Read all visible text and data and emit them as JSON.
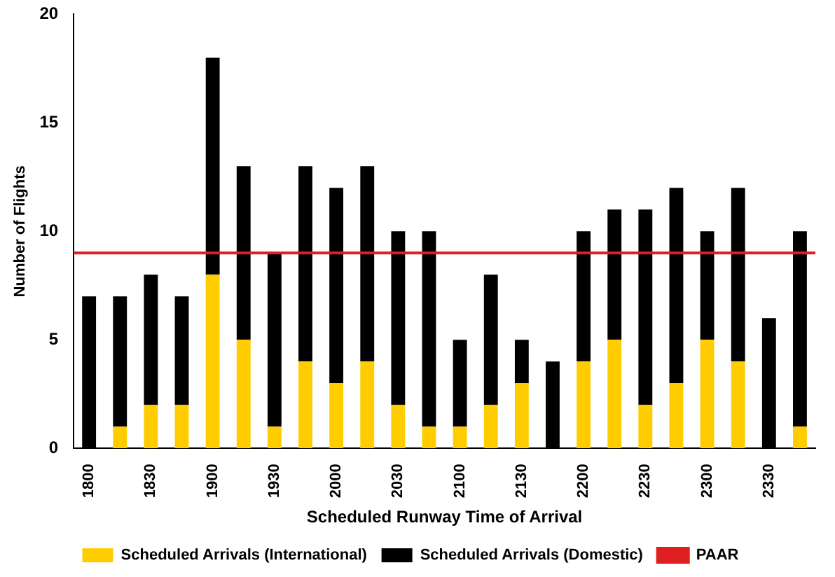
{
  "chart_data": {
    "type": "bar",
    "stacked": true,
    "xlabel": "Scheduled Runway Time of Arrival",
    "ylabel": "Number of Flights",
    "categories": [
      "1800",
      null,
      "1830",
      null,
      "1900",
      null,
      "1930",
      null,
      "2000",
      null,
      "2030",
      null,
      "2100",
      null,
      "2130",
      null,
      "2200",
      null,
      "2230",
      null,
      "2300",
      null,
      "2330",
      null
    ],
    "series": [
      {
        "name": "Scheduled Arrivals (International)",
        "color": "#ffcc00",
        "values": [
          0,
          1,
          2,
          2,
          8,
          5,
          1,
          4,
          3,
          4,
          2,
          1,
          1,
          2,
          3,
          0,
          4,
          5,
          2,
          3,
          5,
          4,
          0,
          1
        ]
      },
      {
        "name": "Scheduled Arrivals (Domestic)",
        "color": "#000000",
        "values": [
          7,
          6,
          6,
          5,
          10,
          8,
          8,
          9,
          9,
          9,
          8,
          9,
          4,
          6,
          2,
          4,
          6,
          6,
          9,
          9,
          5,
          8,
          6,
          9
        ]
      }
    ],
    "ylim": [
      0,
      20
    ],
    "yticks": [
      0,
      5,
      10,
      15,
      20
    ],
    "grid": false,
    "legend": "bottom",
    "ref_lines": [
      {
        "axis": "y",
        "value": 9,
        "label": "PAAR",
        "color": "#e02020"
      }
    ]
  }
}
